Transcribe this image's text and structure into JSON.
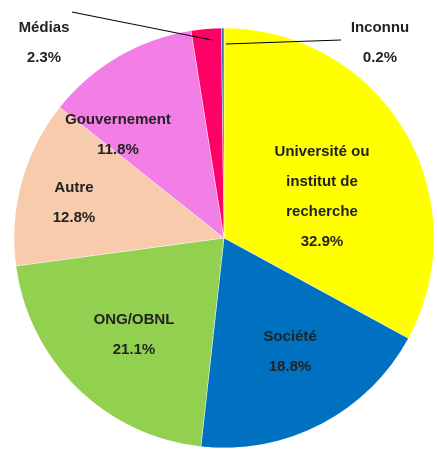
{
  "chart_data": {
    "type": "pie",
    "categories": [
      "Université ou institut de recherche",
      "Société",
      "ONG/OBNL",
      "Autre",
      "Gouvernement",
      "Médias",
      "Inconnu"
    ],
    "values": [
      32.9,
      18.8,
      21.1,
      12.8,
      11.8,
      2.3,
      0.2
    ],
    "value_labels": [
      "32.9%",
      "18.8%",
      "21.1%",
      "12.8%",
      "11.8%",
      "2.3%",
      "0.2%"
    ],
    "colors": [
      "#ffff00",
      "#0070c0",
      "#92d050",
      "#f8cbad",
      "#f27ee6",
      "#ff0066",
      "#2e75b6"
    ]
  }
}
